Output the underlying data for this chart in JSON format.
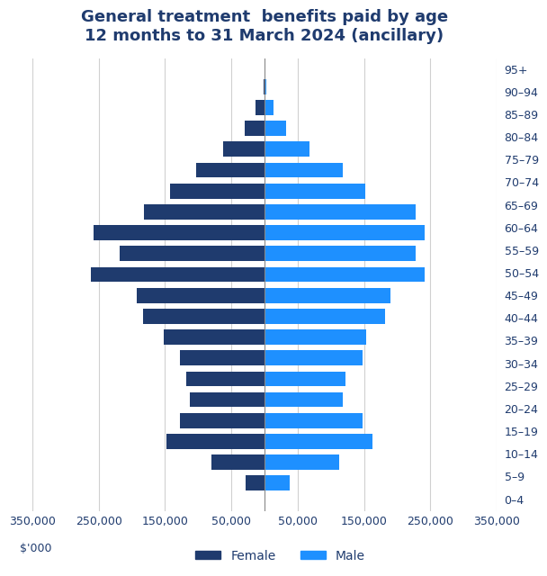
{
  "title": "General treatment  benefits paid by age\n12 months to 31 March 2024 (ancillary)",
  "age_groups": [
    "0–4",
    "5–9",
    "10–14",
    "15–19",
    "20–24",
    "25–29",
    "30–34",
    "35–39",
    "40–44",
    "45–49",
    "50–54",
    "55–59",
    "60–64",
    "65–69",
    "70–74",
    "75–79",
    "80–84",
    "85–89",
    "90–94",
    "95+"
  ],
  "female": [
    28000,
    80000,
    148000,
    128000,
    112000,
    118000,
    128000,
    152000,
    183000,
    193000,
    262000,
    218000,
    258000,
    182000,
    142000,
    103000,
    63000,
    30000,
    14000,
    2000
  ],
  "male": [
    38000,
    112000,
    163000,
    148000,
    118000,
    122000,
    148000,
    153000,
    182000,
    190000,
    242000,
    228000,
    242000,
    228000,
    152000,
    118000,
    68000,
    32000,
    14000,
    3000
  ],
  "female_color": "#1F3B6E",
  "male_color": "#1E90FF",
  "xlim": 350000,
  "xlabel": "$'000",
  "legend_labels": [
    "Female",
    "Male"
  ],
  "background_color": "#ffffff",
  "title_color": "#1F3B6E",
  "tick_label_color": "#1F3B6E",
  "grid_color": "#d0d0d0",
  "xtick_positions": [
    -350000,
    -250000,
    -150000,
    -50000,
    50000,
    150000,
    250000,
    350000
  ],
  "xtick_labels": [
    "350,000",
    "250,000",
    "150,000",
    "50,000",
    "50,000",
    "150,000",
    "250,000",
    "350,000"
  ]
}
